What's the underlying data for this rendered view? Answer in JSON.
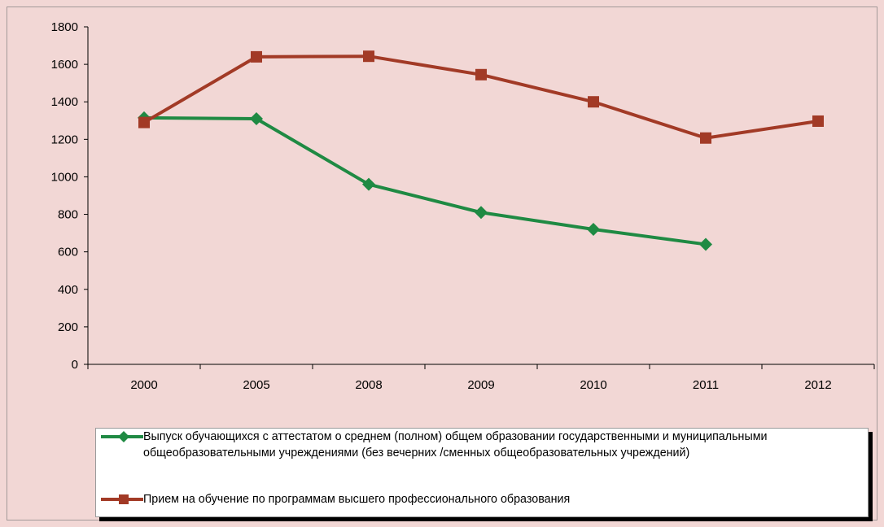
{
  "colors": {
    "background": "#f2d7d5",
    "series_green": "#1f8a43",
    "series_red": "#a23a26"
  },
  "chart_data": {
    "type": "line",
    "title": "",
    "xlabel": "",
    "ylabel": "",
    "categories": [
      "2000",
      "2005",
      "2008",
      "2009",
      "2010",
      "2011",
      "2012"
    ],
    "ylim": [
      0,
      1800
    ],
    "yticks": [
      0,
      200,
      400,
      600,
      800,
      1000,
      1200,
      1400,
      1600,
      1800
    ],
    "grid": false,
    "legend_position": "bottom",
    "series": [
      {
        "name": "Выпуск обучающихся с аттестатом о среднем (полном) общем образовании государственными и муниципальными общеобразовательными учреждениями (без вечерних /сменных общеобразовательных учреждений)",
        "values": [
          1315,
          1310,
          960,
          810,
          720,
          640,
          null
        ],
        "color": "#1f8a43",
        "marker": "diamond"
      },
      {
        "name": "Прием на обучение по программам высшего профессионального образования",
        "values": [
          1290,
          1640,
          1643,
          1545,
          1400,
          1207,
          1297
        ],
        "color": "#a23a26",
        "marker": "square"
      }
    ]
  }
}
